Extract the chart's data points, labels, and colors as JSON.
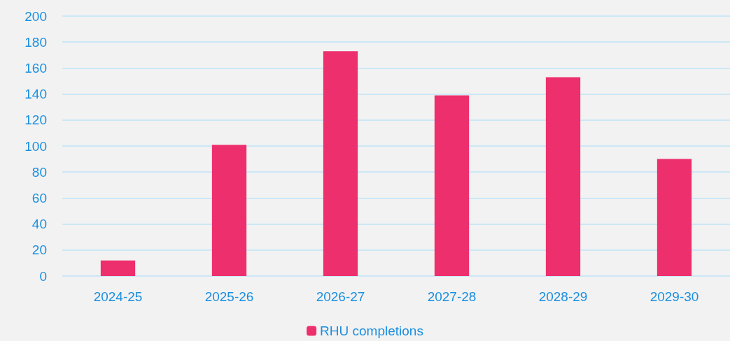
{
  "chart_data": {
    "type": "bar",
    "categories": [
      "2024-25",
      "2025-26",
      "2026-27",
      "2027-28",
      "2028-29",
      "2029-30"
    ],
    "series": [
      {
        "name": "RHU completions",
        "color": "#ed2f6d",
        "values": [
          12,
          101,
          173,
          139,
          153,
          90
        ]
      }
    ],
    "ylim": [
      0,
      200
    ],
    "yticks": [
      0,
      20,
      40,
      60,
      80,
      100,
      120,
      140,
      160,
      180,
      200
    ],
    "grid": "y",
    "legend": "bottom"
  }
}
